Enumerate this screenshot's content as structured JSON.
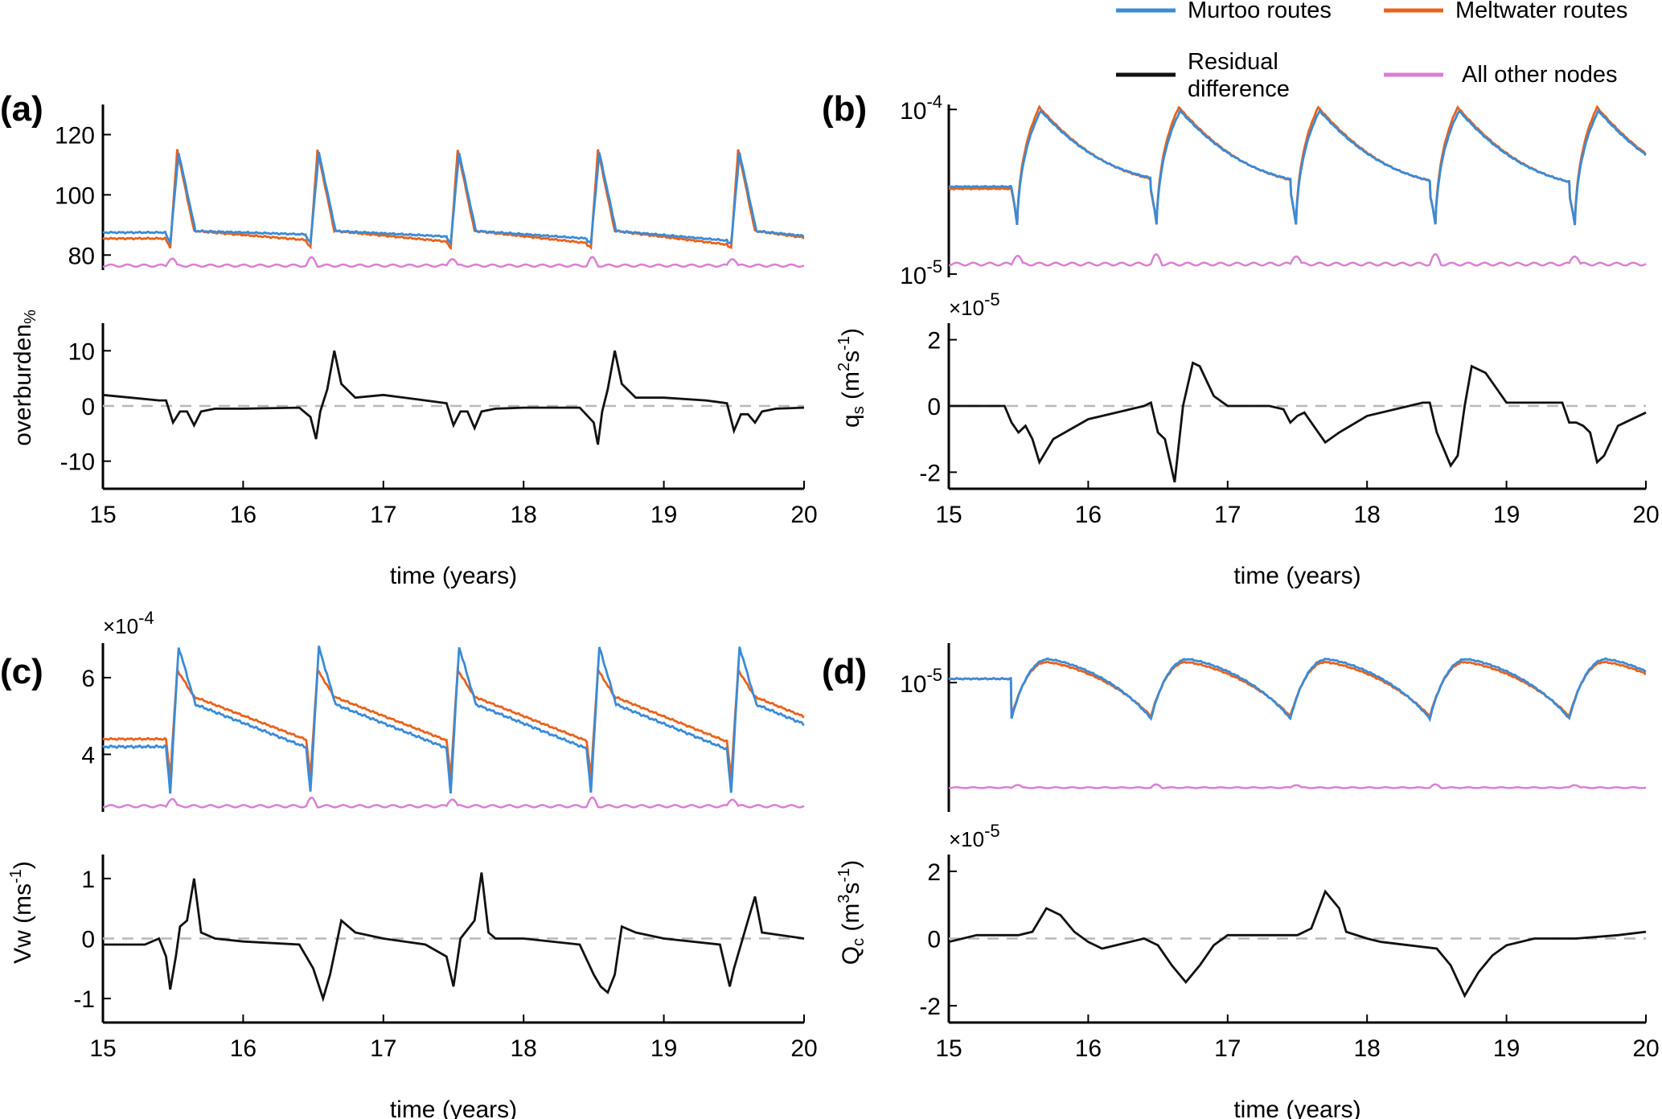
{
  "legend": {
    "items": [
      {
        "label": "Murtoo routes",
        "color": "#3b8bd6"
      },
      {
        "label": "Meltwater routes",
        "color": "#e8621c"
      },
      {
        "label_line1": "Residual",
        "label_line2": "difference",
        "color": "#111111"
      },
      {
        "label": "All other nodes",
        "color": "#d97fd5"
      }
    ]
  },
  "chart_data": [
    {
      "panel": "(a)",
      "type": "line",
      "xlabel": "time (years)",
      "ylabel": "overburden%",
      "ylabel_main": "overburden",
      "ylabel_sub": "%",
      "x_ticks": [
        "15",
        "16",
        "17",
        "18",
        "19",
        "20"
      ],
      "xlim": [
        15,
        20
      ],
      "upper": {
        "scale": "linear",
        "ylim": [
          75,
          130
        ],
        "y_ticks": [
          {
            "v": 80,
            "label": "80"
          },
          {
            "v": 100,
            "label": "100"
          },
          {
            "v": 120,
            "label": "120"
          }
        ],
        "cycle_start": 15.45,
        "cycle_period": 1.0,
        "murtoo": {
          "base_start": 87.5,
          "base_end": 83.5,
          "peak": 114,
          "trough": 84,
          "post": 88
        },
        "meltwater": {
          "base_start": 85.5,
          "base_end": 82.5,
          "peak": 115,
          "trough": 82.5,
          "post": 88
        },
        "other": {
          "base": 76.5,
          "bump": 2.5
        }
      },
      "lower": {
        "ylim": [
          -15,
          15
        ],
        "exponent": "",
        "y_ticks": [
          {
            "v": -10,
            "label": "-10"
          },
          {
            "v": 0,
            "label": "0"
          },
          {
            "v": 10,
            "label": "10"
          }
        ],
        "residual": [
          [
            15.0,
            2
          ],
          [
            15.2,
            1.5
          ],
          [
            15.4,
            1
          ],
          [
            15.45,
            1
          ],
          [
            15.5,
            -3
          ],
          [
            15.55,
            -1
          ],
          [
            15.6,
            -1
          ],
          [
            15.65,
            -3.5
          ],
          [
            15.7,
            -1
          ],
          [
            15.8,
            -0.5
          ],
          [
            16.0,
            -0.5
          ],
          [
            16.4,
            -0.3
          ],
          [
            16.48,
            -2
          ],
          [
            16.52,
            -6
          ],
          [
            16.55,
            -1
          ],
          [
            16.6,
            3
          ],
          [
            16.65,
            10
          ],
          [
            16.7,
            4
          ],
          [
            16.8,
            1.5
          ],
          [
            17.0,
            2
          ],
          [
            17.3,
            1
          ],
          [
            17.45,
            0.5
          ],
          [
            17.5,
            -3.5
          ],
          [
            17.55,
            -1
          ],
          [
            17.6,
            -1
          ],
          [
            17.65,
            -4
          ],
          [
            17.7,
            -1
          ],
          [
            17.8,
            -0.5
          ],
          [
            18.0,
            -0.3
          ],
          [
            18.4,
            -0.3
          ],
          [
            18.5,
            -3
          ],
          [
            18.53,
            -7
          ],
          [
            18.56,
            -1
          ],
          [
            18.6,
            3
          ],
          [
            18.65,
            10
          ],
          [
            18.7,
            4
          ],
          [
            18.8,
            1.5
          ],
          [
            19.0,
            1.5
          ],
          [
            19.3,
            1
          ],
          [
            19.45,
            0.5
          ],
          [
            19.5,
            -4.5
          ],
          [
            19.55,
            -1.5
          ],
          [
            19.6,
            -1.5
          ],
          [
            19.65,
            -3
          ],
          [
            19.7,
            -1
          ],
          [
            19.8,
            -0.5
          ],
          [
            20.0,
            -0.3
          ]
        ]
      }
    },
    {
      "panel": "(b)",
      "type": "line",
      "xlabel": "time (years)",
      "ylabel": "qs (m2s-1)",
      "ylabel_main": "q",
      "ylabel_sub": "s",
      "ylabel_unit": "(m",
      "ylabel_sup1": "2",
      "ylabel_unit2": "s",
      "ylabel_sup2": "-1",
      "ylabel_close": ")",
      "x_ticks": [
        "15",
        "16",
        "17",
        "18",
        "19",
        "20"
      ],
      "xlim": [
        15,
        20
      ],
      "upper": {
        "scale": "log",
        "ylim_log": [
          -5.02,
          -3.97
        ],
        "y_ticks": [
          {
            "v": -5,
            "base": "10",
            "exp": "-5"
          },
          {
            "v": -4,
            "base": "10",
            "exp": "-4"
          }
        ],
        "cycle_start": 15.45,
        "cycle_period": 1.0,
        "murtoo": {
          "base_start": 3.4e-05,
          "base_end": 2.95e-05,
          "peak": 9.8e-05,
          "trough": 2e-05,
          "post": 4e-05
        },
        "meltwater": {
          "base_start": 3.3e-05,
          "base_end": 2.95e-05,
          "peak": 0.000103,
          "trough": 2e-05,
          "post": 4.2e-05
        },
        "other": {
          "base": 1.15e-05,
          "bump": 1.5e-06
        }
      },
      "lower": {
        "ylim": [
          -2.5,
          2.5
        ],
        "exponent": "×10",
        "exponent_power": "-5",
        "y_ticks": [
          {
            "v": -2,
            "label": "-2"
          },
          {
            "v": 0,
            "label": "0"
          },
          {
            "v": 2,
            "label": "2"
          }
        ],
        "residual": [
          [
            15.0,
            0
          ],
          [
            15.4,
            0
          ],
          [
            15.45,
            -0.5
          ],
          [
            15.5,
            -0.8
          ],
          [
            15.55,
            -0.6
          ],
          [
            15.6,
            -1.0
          ],
          [
            15.65,
            -1.7
          ],
          [
            15.75,
            -1.0
          ],
          [
            16.0,
            -0.4
          ],
          [
            16.4,
            0
          ],
          [
            16.45,
            0.1
          ],
          [
            16.5,
            -0.8
          ],
          [
            16.55,
            -1.0
          ],
          [
            16.62,
            -2.3
          ],
          [
            16.68,
            0
          ],
          [
            16.75,
            1.3
          ],
          [
            16.8,
            1.2
          ],
          [
            16.9,
            0.3
          ],
          [
            17.0,
            0
          ],
          [
            17.3,
            0
          ],
          [
            17.4,
            -0.1
          ],
          [
            17.45,
            -0.5
          ],
          [
            17.5,
            -0.3
          ],
          [
            17.55,
            -0.2
          ],
          [
            17.6,
            -0.5
          ],
          [
            17.7,
            -1.1
          ],
          [
            17.8,
            -0.8
          ],
          [
            18.0,
            -0.3
          ],
          [
            18.4,
            0.1
          ],
          [
            18.45,
            0.1
          ],
          [
            18.5,
            -0.8
          ],
          [
            18.6,
            -1.8
          ],
          [
            18.65,
            -1.5
          ],
          [
            18.7,
            0
          ],
          [
            18.75,
            1.2
          ],
          [
            18.85,
            1.0
          ],
          [
            19.0,
            0.1
          ],
          [
            19.4,
            0.1
          ],
          [
            19.45,
            -0.5
          ],
          [
            19.5,
            -0.5
          ],
          [
            19.55,
            -0.6
          ],
          [
            19.6,
            -0.8
          ],
          [
            19.65,
            -1.7
          ],
          [
            19.7,
            -1.5
          ],
          [
            19.8,
            -0.6
          ],
          [
            20.0,
            -0.2
          ]
        ]
      }
    },
    {
      "panel": "(c)",
      "type": "line",
      "xlabel": "time (years)",
      "ylabel": "Vw (ms-1)",
      "ylabel_main": "Vw (ms",
      "ylabel_sup": "-1",
      "ylabel_close": ")",
      "x_ticks": [
        "15",
        "16",
        "17",
        "18",
        "19",
        "20"
      ],
      "xlim": [
        15,
        20
      ],
      "upper": {
        "scale": "linear",
        "ylim": [
          2.5,
          6.9
        ],
        "exponent": "×10",
        "exponent_power": "-4",
        "y_ticks": [
          {
            "v": 4,
            "label": "4"
          },
          {
            "v": 6,
            "label": "6"
          }
        ],
        "cycle_start": 15.45,
        "cycle_period": 1.0,
        "murtoo": {
          "base_start": 4.2,
          "base_end": 4.1,
          "peak": 6.8,
          "trough": 3.0,
          "post": 5.3
        },
        "meltwater": {
          "base_start": 4.4,
          "base_end": 4.3,
          "peak": 6.2,
          "trough": 3.4,
          "post": 5.5
        },
        "other": {
          "base": 2.65,
          "bump": 0.2
        }
      },
      "lower": {
        "ylim": [
          -1.4,
          1.4
        ],
        "exponent": "",
        "y_ticks": [
          {
            "v": -1,
            "label": "-1"
          },
          {
            "v": 0,
            "label": "0"
          },
          {
            "v": 1,
            "label": "1"
          }
        ],
        "residual": [
          [
            15.0,
            -0.1
          ],
          [
            15.3,
            -0.1
          ],
          [
            15.4,
            0
          ],
          [
            15.45,
            -0.3
          ],
          [
            15.48,
            -0.85
          ],
          [
            15.52,
            -0.3
          ],
          [
            15.55,
            0.2
          ],
          [
            15.6,
            0.3
          ],
          [
            15.65,
            1.0
          ],
          [
            15.7,
            0.1
          ],
          [
            15.8,
            0
          ],
          [
            16.0,
            -0.05
          ],
          [
            16.4,
            -0.1
          ],
          [
            16.5,
            -0.5
          ],
          [
            16.57,
            -1.0
          ],
          [
            16.62,
            -0.6
          ],
          [
            16.7,
            0.3
          ],
          [
            16.8,
            0.1
          ],
          [
            17.0,
            0
          ],
          [
            17.3,
            -0.1
          ],
          [
            17.45,
            -0.3
          ],
          [
            17.5,
            -0.8
          ],
          [
            17.55,
            0
          ],
          [
            17.65,
            0.3
          ],
          [
            17.7,
            1.1
          ],
          [
            17.75,
            0.1
          ],
          [
            17.8,
            0
          ],
          [
            18.0,
            0
          ],
          [
            18.4,
            -0.1
          ],
          [
            18.5,
            -0.6
          ],
          [
            18.55,
            -0.8
          ],
          [
            18.6,
            -0.9
          ],
          [
            18.65,
            -0.6
          ],
          [
            18.7,
            0.2
          ],
          [
            18.8,
            0.1
          ],
          [
            19.0,
            0
          ],
          [
            19.4,
            -0.1
          ],
          [
            19.47,
            -0.8
          ],
          [
            19.5,
            -0.5
          ],
          [
            19.55,
            -0.1
          ],
          [
            19.6,
            0.3
          ],
          [
            19.65,
            0.7
          ],
          [
            19.7,
            0.1
          ],
          [
            20.0,
            0
          ]
        ]
      }
    },
    {
      "panel": "(d)",
      "type": "line",
      "xlabel": "time (years)",
      "ylabel": "Qc (m3s-1)",
      "ylabel_main": "Q",
      "ylabel_sub": "c",
      "ylabel_unit": "(m",
      "ylabel_sup1": "3",
      "ylabel_unit2": "s",
      "ylabel_sup2": "-1",
      "ylabel_close": ")",
      "x_ticks": [
        "15",
        "16",
        "17",
        "18",
        "19",
        "20"
      ],
      "xlim": [
        15,
        20
      ],
      "upper": {
        "scale": "log",
        "ylim_log": [
          -5.72,
          -4.78
        ],
        "y_ticks": [
          {
            "v": -5,
            "base": "10",
            "exp": "-5"
          }
        ],
        "cycle_start": 15.45,
        "cycle_period": 1.0,
        "murtoo": {
          "base_start": 1.05e-05,
          "base_end": 6.5e-06,
          "peak": 1.35e-05,
          "trough": 6.3e-06,
          "post": 1.3e-05
        },
        "meltwater": {
          "base_start": 1.05e-05,
          "base_end": 6.6e-06,
          "peak": 1.3e-05,
          "trough": 6.5e-06,
          "post": 1.28e-05
        },
        "other": {
          "base": 2.6e-06,
          "bump": 1e-07
        }
      },
      "lower": {
        "ylim": [
          -2.5,
          2.5
        ],
        "exponent": "×10",
        "exponent_power": "-5",
        "y_ticks": [
          {
            "v": -2,
            "label": "-2"
          },
          {
            "v": 0,
            "label": "0"
          },
          {
            "v": 2,
            "label": "2"
          }
        ],
        "residual": [
          [
            15.0,
            -0.1
          ],
          [
            15.2,
            0.1
          ],
          [
            15.5,
            0.1
          ],
          [
            15.6,
            0.2
          ],
          [
            15.7,
            0.9
          ],
          [
            15.8,
            0.7
          ],
          [
            15.9,
            0.2
          ],
          [
            16.0,
            -0.1
          ],
          [
            16.1,
            -0.3
          ],
          [
            16.3,
            -0.1
          ],
          [
            16.4,
            0
          ],
          [
            16.5,
            -0.2
          ],
          [
            16.6,
            -0.8
          ],
          [
            16.7,
            -1.3
          ],
          [
            16.8,
            -0.8
          ],
          [
            16.9,
            -0.2
          ],
          [
            17.0,
            0.1
          ],
          [
            17.5,
            0.1
          ],
          [
            17.6,
            0.3
          ],
          [
            17.7,
            1.4
          ],
          [
            17.8,
            0.9
          ],
          [
            17.85,
            0.2
          ],
          [
            18.0,
            0
          ],
          [
            18.1,
            -0.1
          ],
          [
            18.5,
            -0.3
          ],
          [
            18.6,
            -0.8
          ],
          [
            18.7,
            -1.7
          ],
          [
            18.8,
            -1.0
          ],
          [
            18.9,
            -0.5
          ],
          [
            19.0,
            -0.2
          ],
          [
            19.2,
            0
          ],
          [
            19.5,
            0
          ],
          [
            19.8,
            0.1
          ],
          [
            20.0,
            0.2
          ]
        ]
      }
    }
  ]
}
